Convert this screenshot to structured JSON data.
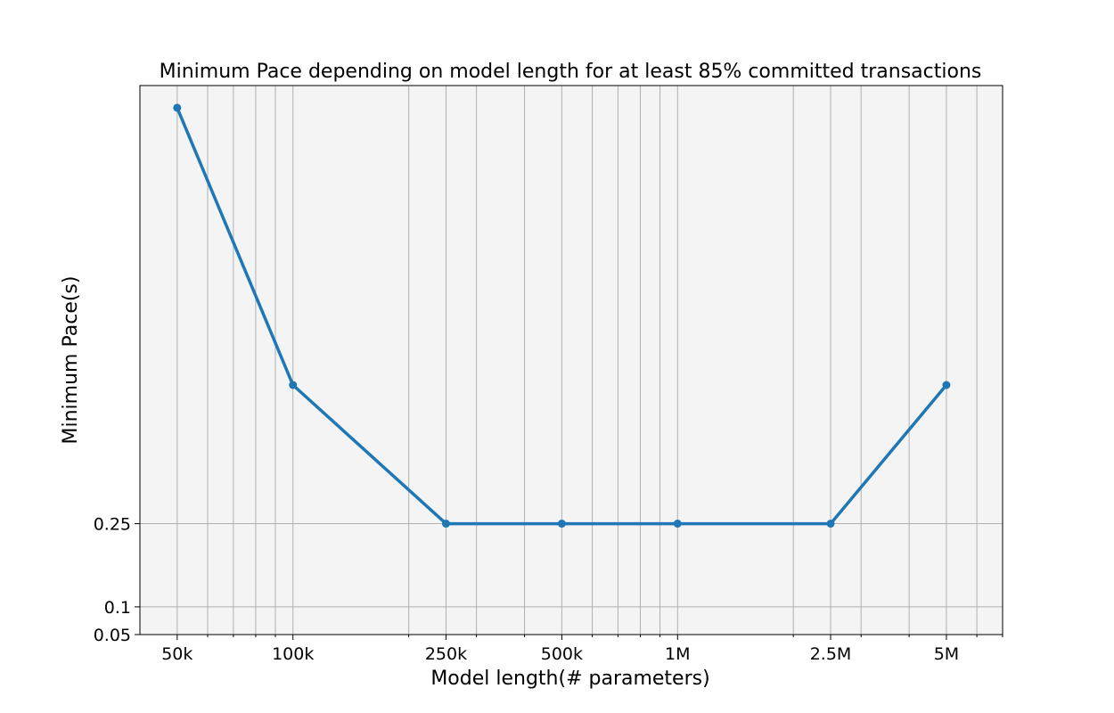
{
  "chart_data": {
    "type": "line",
    "title": "Minimum Pace depending on model length for at least 85% committed transactions",
    "xlabel": "Model length(# parameters)",
    "ylabel": "Minimum Pace(s)",
    "x_scale": "log",
    "xlim": [
      40000,
      7000000
    ],
    "ylim": [
      0.05,
      1.04
    ],
    "x_ticks": [
      {
        "value": 50000,
        "label": "50k"
      },
      {
        "value": 100000,
        "label": "100k"
      },
      {
        "value": 250000,
        "label": "250k"
      },
      {
        "value": 500000,
        "label": "500k"
      },
      {
        "value": 1000000,
        "label": "1M"
      },
      {
        "value": 2500000,
        "label": "2.5M"
      },
      {
        "value": 5000000,
        "label": "5M"
      }
    ],
    "y_ticks": [
      {
        "value": 0.05,
        "label": "0.05"
      },
      {
        "value": 0.1,
        "label": "0.1"
      },
      {
        "value": 0.25,
        "label": "0.25"
      }
    ],
    "minor_x_gridlines": [
      60000,
      70000,
      80000,
      90000,
      200000,
      300000,
      400000,
      600000,
      700000,
      800000,
      900000,
      2000000,
      3000000,
      4000000,
      6000000,
      7000000
    ],
    "grid": true,
    "legend": "none",
    "series": [
      {
        "color": "#1f77b4",
        "x": [
          50000,
          100000,
          250000,
          500000,
          1000000,
          2500000,
          5000000
        ],
        "y": [
          1.0,
          0.5,
          0.25,
          0.25,
          0.25,
          0.25,
          0.5
        ]
      }
    ]
  }
}
